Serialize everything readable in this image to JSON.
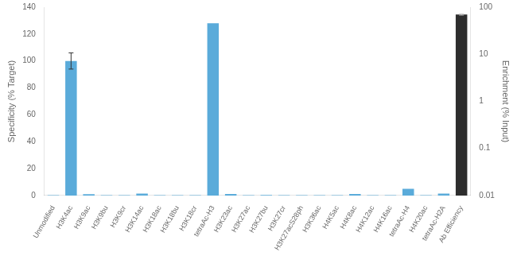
{
  "chart_data": {
    "type": "bar",
    "categories": [
      "Unmodified",
      "H3K4ac",
      "H3K9ac",
      "H3K9bu",
      "H3K9cr",
      "H3K14ac",
      "H3K18ac",
      "H3K18bu",
      "H3K18cr",
      "tetraAc-H3",
      "H3K23ac",
      "H3K27ac",
      "H3K27bu",
      "H3K27cr",
      "H3K27acS28ph",
      "H3K36ac",
      "H4K5ac",
      "H4K8ac",
      "H4K12ac",
      "H4K16ac",
      "tetraAc-H4",
      "H4K20ac",
      "tetraAc-H2A",
      "Ab Efficiency"
    ],
    "series": [
      {
        "color": "#5aabda",
        "values": [
          0.3,
          100.0,
          1.0,
          0.3,
          0.3,
          1.5,
          0.3,
          0.3,
          0.3,
          128.0,
          1.2,
          0.3,
          0.5,
          0.3,
          0.3,
          0.3,
          0.3,
          1.2,
          0.3,
          0.3,
          5.0,
          0.3,
          1.5,
          null
        ],
        "errors": [
          null,
          6.0,
          null,
          null,
          null,
          null,
          null,
          null,
          null,
          null,
          null,
          null,
          null,
          null,
          null,
          null,
          null,
          null,
          null,
          null,
          null,
          null,
          null,
          null
        ]
      },
      {
        "color": "#2d2d2d",
        "axis": "y2",
        "values": [
          null,
          null,
          null,
          null,
          null,
          null,
          null,
          null,
          null,
          null,
          null,
          null,
          null,
          null,
          null,
          null,
          null,
          null,
          null,
          null,
          null,
          null,
          null,
          70.0
        ],
        "errors": [
          null,
          null,
          null,
          null,
          null,
          null,
          null,
          null,
          null,
          null,
          null,
          null,
          null,
          null,
          null,
          null,
          null,
          null,
          null,
          null,
          null,
          null,
          null,
          2.0
        ]
      }
    ],
    "ylabel": "Specificity (% Target)",
    "y2label": "Enrichment (% Input)",
    "ylim": [
      0,
      140
    ],
    "yticks": [
      0,
      20,
      40,
      60,
      80,
      100,
      120,
      140
    ],
    "y2lim": [
      0.01,
      100
    ],
    "y2ticks": [
      0.01,
      0.1,
      1,
      10,
      100
    ],
    "log": "y2",
    "grid": false
  }
}
